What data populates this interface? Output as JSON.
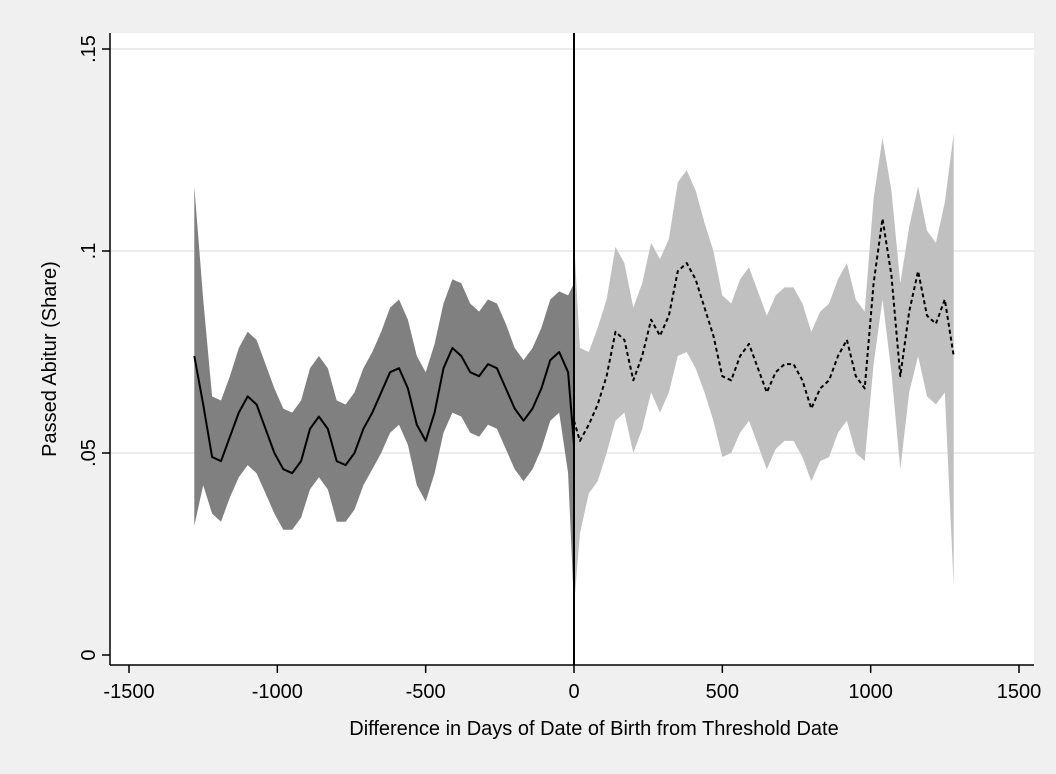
{
  "chart_data": {
    "type": "area",
    "title": "",
    "xlabel": "Difference in Days of Date of Birth from Threshold Date",
    "ylabel": "Passed Abitur (Share)",
    "xlim": [
      -1500,
      1500
    ],
    "ylim": [
      0,
      0.15
    ],
    "x_ticks": [
      {
        "value": -1500,
        "label": "-1500"
      },
      {
        "value": -1000,
        "label": "-1000"
      },
      {
        "value": -500,
        "label": "-500"
      },
      {
        "value": 0,
        "label": "0"
      },
      {
        "value": 500,
        "label": "500"
      },
      {
        "value": 1000,
        "label": "1000"
      },
      {
        "value": 1500,
        "label": "1500"
      }
    ],
    "y_ticks": [
      {
        "value": 0,
        "label": "0"
      },
      {
        "value": 0.05,
        "label": ".05"
      },
      {
        "value": 0.1,
        "label": ".1"
      },
      {
        "value": 0.15,
        "label": ".15"
      }
    ],
    "grid": "horizontal",
    "threshold_line_x": 0,
    "colors": {
      "background": "#f0f0f0",
      "plot_area": "#ffffff",
      "gridline": "#e6e6e6",
      "band_left": "#808080",
      "band_right": "#c0c0c0",
      "line": "#000000"
    },
    "series": [
      {
        "style": "solid",
        "band_color": "#808080",
        "x": [
          -1280,
          -1250,
          -1220,
          -1190,
          -1160,
          -1130,
          -1100,
          -1070,
          -1040,
          -1010,
          -980,
          -950,
          -920,
          -890,
          -860,
          -830,
          -800,
          -770,
          -740,
          -710,
          -680,
          -650,
          -620,
          -590,
          -560,
          -530,
          -500,
          -470,
          -440,
          -410,
          -380,
          -350,
          -320,
          -290,
          -260,
          -230,
          -200,
          -170,
          -140,
          -110,
          -80,
          -50,
          -20,
          0
        ],
        "y": [
          0.074,
          0.062,
          0.049,
          0.048,
          0.054,
          0.06,
          0.064,
          0.062,
          0.056,
          0.05,
          0.046,
          0.045,
          0.048,
          0.056,
          0.059,
          0.056,
          0.048,
          0.047,
          0.05,
          0.056,
          0.06,
          0.065,
          0.07,
          0.071,
          0.066,
          0.057,
          0.053,
          0.06,
          0.071,
          0.076,
          0.074,
          0.07,
          0.069,
          0.072,
          0.071,
          0.066,
          0.061,
          0.058,
          0.061,
          0.066,
          0.073,
          0.075,
          0.07,
          0.052
        ],
        "lower": [
          0.032,
          0.042,
          0.035,
          0.033,
          0.039,
          0.044,
          0.047,
          0.045,
          0.04,
          0.035,
          0.031,
          0.031,
          0.034,
          0.041,
          0.044,
          0.041,
          0.033,
          0.033,
          0.036,
          0.042,
          0.046,
          0.05,
          0.055,
          0.057,
          0.052,
          0.042,
          0.038,
          0.045,
          0.055,
          0.06,
          0.059,
          0.055,
          0.054,
          0.057,
          0.056,
          0.051,
          0.046,
          0.043,
          0.046,
          0.051,
          0.058,
          0.06,
          0.045,
          0.012
        ],
        "upper": [
          0.116,
          0.088,
          0.064,
          0.063,
          0.069,
          0.076,
          0.08,
          0.078,
          0.072,
          0.066,
          0.061,
          0.06,
          0.063,
          0.071,
          0.074,
          0.071,
          0.063,
          0.062,
          0.065,
          0.071,
          0.075,
          0.08,
          0.086,
          0.088,
          0.083,
          0.074,
          0.07,
          0.077,
          0.087,
          0.093,
          0.092,
          0.087,
          0.085,
          0.088,
          0.087,
          0.082,
          0.076,
          0.073,
          0.076,
          0.081,
          0.088,
          0.09,
          0.089,
          0.092
        ]
      },
      {
        "style": "dashed",
        "band_color": "#c0c0c0",
        "x": [
          0,
          20,
          50,
          80,
          110,
          140,
          170,
          200,
          230,
          260,
          290,
          320,
          350,
          380,
          410,
          440,
          470,
          500,
          530,
          560,
          590,
          620,
          650,
          680,
          710,
          740,
          770,
          800,
          830,
          860,
          890,
          920,
          950,
          980,
          1010,
          1040,
          1070,
          1100,
          1130,
          1160,
          1190,
          1220,
          1250,
          1280
        ],
        "y": [
          0.058,
          0.053,
          0.057,
          0.062,
          0.069,
          0.08,
          0.078,
          0.068,
          0.074,
          0.083,
          0.079,
          0.084,
          0.095,
          0.097,
          0.093,
          0.086,
          0.079,
          0.069,
          0.068,
          0.074,
          0.077,
          0.071,
          0.065,
          0.07,
          0.072,
          0.072,
          0.068,
          0.061,
          0.066,
          0.068,
          0.074,
          0.078,
          0.069,
          0.066,
          0.092,
          0.108,
          0.094,
          0.069,
          0.085,
          0.095,
          0.084,
          0.082,
          0.088,
          0.074
        ],
        "lower": [
          0.012,
          0.03,
          0.04,
          0.043,
          0.05,
          0.058,
          0.06,
          0.05,
          0.056,
          0.065,
          0.06,
          0.065,
          0.074,
          0.075,
          0.071,
          0.065,
          0.058,
          0.049,
          0.05,
          0.055,
          0.058,
          0.052,
          0.046,
          0.051,
          0.053,
          0.053,
          0.049,
          0.043,
          0.048,
          0.049,
          0.055,
          0.058,
          0.05,
          0.048,
          0.072,
          0.088,
          0.07,
          0.046,
          0.065,
          0.074,
          0.064,
          0.062,
          0.065,
          0.017
        ],
        "upper": [
          0.103,
          0.076,
          0.075,
          0.081,
          0.088,
          0.101,
          0.097,
          0.086,
          0.092,
          0.102,
          0.098,
          0.103,
          0.117,
          0.12,
          0.115,
          0.107,
          0.1,
          0.089,
          0.087,
          0.093,
          0.096,
          0.09,
          0.084,
          0.089,
          0.091,
          0.091,
          0.087,
          0.08,
          0.085,
          0.087,
          0.093,
          0.097,
          0.088,
          0.085,
          0.113,
          0.128,
          0.115,
          0.092,
          0.106,
          0.116,
          0.105,
          0.102,
          0.112,
          0.129
        ]
      }
    ]
  }
}
